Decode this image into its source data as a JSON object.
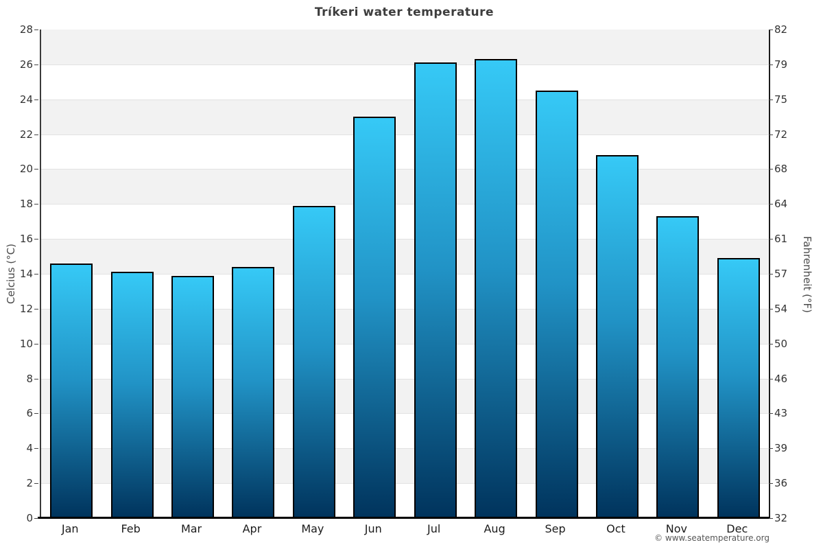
{
  "page": {
    "attribution": "© www.seatemperature.org"
  },
  "chart_data": {
    "type": "bar",
    "title": "Tríkeri water temperature",
    "categories": [
      "Jan",
      "Feb",
      "Mar",
      "Apr",
      "May",
      "Jun",
      "Jul",
      "Aug",
      "Sep",
      "Oct",
      "Nov",
      "Dec"
    ],
    "values": [
      14.6,
      14.1,
      13.9,
      14.4,
      17.9,
      23.0,
      26.1,
      26.3,
      24.5,
      20.8,
      17.3,
      14.9
    ],
    "ylabel_left": "Celcius (°C)",
    "ylabel_right": "Fahrenheit (°F)",
    "ylim": [
      0,
      28
    ],
    "yticks_celsius": [
      0,
      2,
      4,
      6,
      8,
      10,
      12,
      14,
      16,
      18,
      20,
      22,
      24,
      26,
      28
    ],
    "yticks_fahrenheit": [
      "32",
      "36",
      "39",
      "43",
      "46",
      "50",
      "54",
      "57",
      "61",
      "64",
      "68",
      "72",
      "75",
      "79",
      "82"
    ],
    "legend_position": "none",
    "grid": "horizontal-stripes",
    "colors": {
      "bar_gradient_top": "#36c9f6",
      "bar_gradient_mid": "#2193c6",
      "bar_gradient_bottom": "#00335c",
      "bar_border": "#000000",
      "stripe_gray": "#f2f2f2",
      "stripe_white": "#ffffff",
      "gridline": "#e2e2e2",
      "title_text": "#3d3d3d",
      "tick_text": "#333333"
    }
  }
}
